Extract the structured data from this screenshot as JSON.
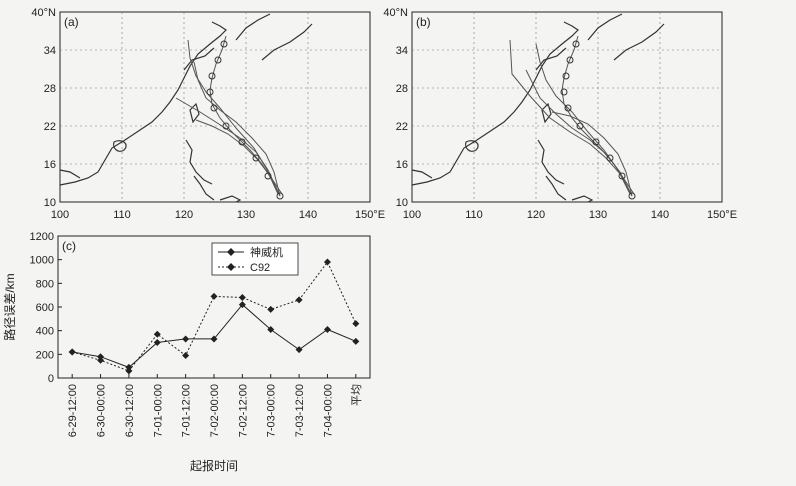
{
  "maps": [
    {
      "panel_label": "(a)",
      "lat_ticks": [
        "40°N",
        "34",
        "28",
        "22",
        "16",
        "10"
      ],
      "lon_ticks": [
        "100",
        "110",
        "120",
        "130",
        "140",
        "150°E"
      ]
    },
    {
      "panel_label": "(b)",
      "lat_ticks": [
        "40°N",
        "34",
        "28",
        "22",
        "16",
        "10"
      ],
      "lon_ticks": [
        "100",
        "110",
        "120",
        "130",
        "140",
        "150°E"
      ]
    }
  ],
  "chart_data": {
    "type": "line",
    "panel_label": "(c)",
    "categories": [
      "6-29-12:00",
      "6-30-00:00",
      "6-30-12:00",
      "7-01-00:00",
      "7-01-12:00",
      "7-02-00:00",
      "7-02-12:00",
      "7-03-00:00",
      "7-03-12:00",
      "7-04-00:00",
      "平均"
    ],
    "series": [
      {
        "name": "神威机",
        "style": "solid",
        "marker": "diamond",
        "values": [
          220,
          180,
          90,
          300,
          330,
          330,
          620,
          410,
          240,
          410,
          310
        ]
      },
      {
        "name": "C92",
        "style": "dotted",
        "marker": "diamond",
        "values": [
          220,
          150,
          60,
          370,
          190,
          690,
          680,
          580,
          660,
          980,
          460
        ]
      }
    ],
    "xlabel": "起报时间",
    "ylabel": "路径误差/km",
    "ylim": [
      0,
      1200
    ],
    "yticks": [
      0,
      200,
      400,
      600,
      800,
      1000,
      1200
    ],
    "legend_position": "top-right",
    "grid": false,
    "colors": {
      "line": "#222222",
      "map_track": "#555555"
    }
  }
}
